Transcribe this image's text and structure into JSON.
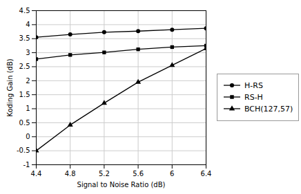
{
  "chart_data": {
    "type": "line",
    "x": [
      4.4,
      4.8,
      5.2,
      5.6,
      6.0,
      6.4
    ],
    "series": [
      {
        "name": "H-RS",
        "color": "#000000",
        "marker": "circle",
        "values": [
          3.55,
          3.65,
          3.73,
          3.77,
          3.82,
          3.87
        ]
      },
      {
        "name": "RS-H",
        "color": "#000000",
        "marker": "square",
        "values": [
          2.77,
          2.92,
          3.01,
          3.12,
          3.2,
          3.25
        ]
      },
      {
        "name": "BCH(127,57)",
        "color": "#000000",
        "marker": "triangle",
        "values": [
          -0.5,
          0.42,
          1.2,
          1.95,
          2.55,
          3.15
        ]
      }
    ],
    "xlabel": "Signal to Noise Ratio (dB)",
    "ylabel": "Koding Gain (dB)",
    "xlim": [
      4.4,
      6.4
    ],
    "ylim": [
      -1.0,
      4.5
    ],
    "xticks": [
      4.4,
      4.8,
      5.2,
      5.6,
      6.0,
      6.4
    ],
    "yticks": [
      -1.0,
      -0.5,
      0.0,
      0.5,
      1.0,
      1.5,
      2.0,
      2.5,
      3.0,
      3.5,
      4.0,
      4.5
    ],
    "grid": true,
    "legend": "right"
  }
}
